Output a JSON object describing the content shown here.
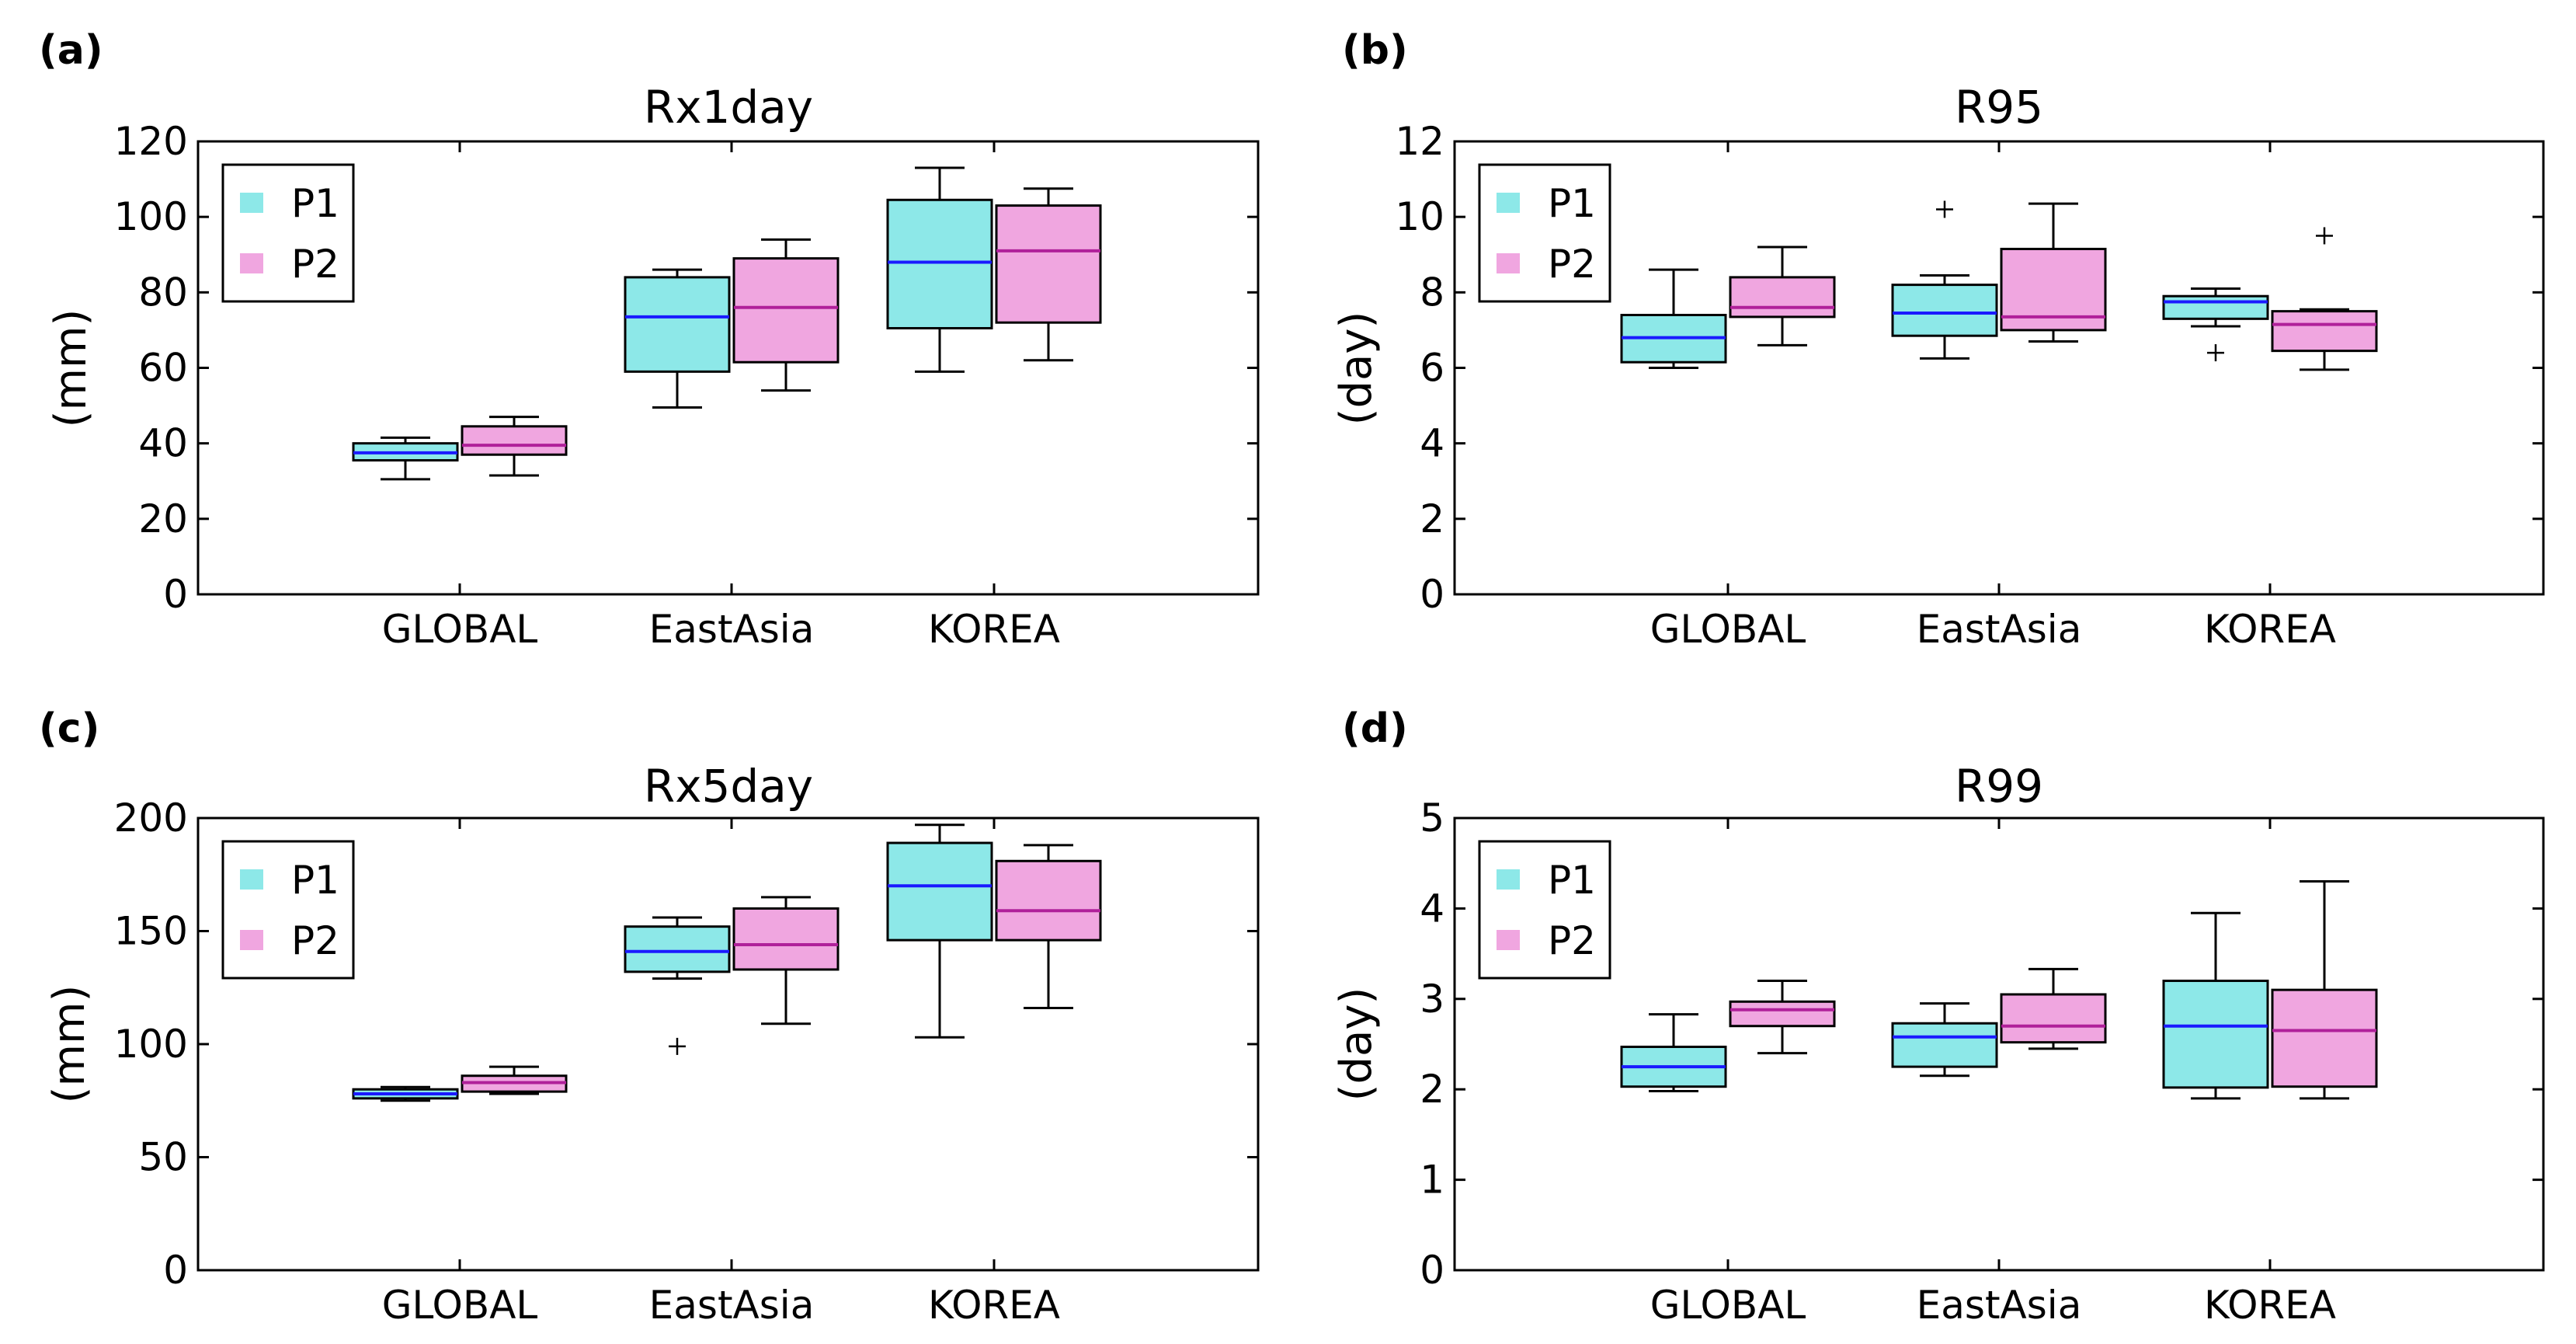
{
  "colors": {
    "p1_fill": "#8de8e8",
    "p2_fill": "#f0a6e0",
    "p1_median": "#1a1aff",
    "p2_median": "#b0209a",
    "frame": "#000000"
  },
  "legend": {
    "p1": "P1",
    "p2": "P2"
  },
  "chart_data": [
    {
      "panel": "(a)",
      "title": "Rx1day",
      "type": "box",
      "ylabel": "(mm)",
      "ylim": [
        0,
        120
      ],
      "yticks": [
        0,
        20,
        40,
        60,
        80,
        100,
        120
      ],
      "ytick_labels": [
        "0",
        "20",
        "40",
        "60",
        "80",
        "100",
        "120"
      ],
      "categories": [
        "GLOBAL",
        "EastAsia",
        "KOREA"
      ],
      "legend_position": "top-left",
      "series": [
        {
          "name": "P1",
          "boxes": [
            {
              "wlo": 30.5,
              "q1": 35.5,
              "med": 37.5,
              "q3": 40,
              "whi": 41.5,
              "fliers": []
            },
            {
              "wlo": 49.5,
              "q1": 59,
              "med": 73.5,
              "q3": 84,
              "whi": 86,
              "fliers": []
            },
            {
              "wlo": 59,
              "q1": 70.5,
              "med": 88,
              "q3": 104.5,
              "whi": 113,
              "fliers": []
            }
          ]
        },
        {
          "name": "P2",
          "boxes": [
            {
              "wlo": 31.5,
              "q1": 37,
              "med": 39.5,
              "q3": 44.5,
              "whi": 47,
              "fliers": []
            },
            {
              "wlo": 54,
              "q1": 61.5,
              "med": 76,
              "q3": 89,
              "whi": 94,
              "fliers": []
            },
            {
              "wlo": 62,
              "q1": 72,
              "med": 91,
              "q3": 103,
              "whi": 107.5,
              "fliers": []
            }
          ]
        }
      ]
    },
    {
      "panel": "(b)",
      "title": "R95",
      "type": "box",
      "ylabel": "(day)",
      "ylim": [
        0,
        12
      ],
      "yticks": [
        0,
        2,
        4,
        6,
        8,
        10,
        12
      ],
      "ytick_labels": [
        "0",
        "2",
        "4",
        "6",
        "8",
        "10",
        "12"
      ],
      "categories": [
        "GLOBAL",
        "EastAsia",
        "KOREA"
      ],
      "legend_position": "top-left",
      "series": [
        {
          "name": "P1",
          "boxes": [
            {
              "wlo": 6.0,
              "q1": 6.15,
              "med": 6.8,
              "q3": 7.4,
              "whi": 8.6,
              "fliers": []
            },
            {
              "wlo": 6.25,
              "q1": 6.85,
              "med": 7.45,
              "q3": 8.2,
              "whi": 8.45,
              "fliers": [
                10.2
              ]
            },
            {
              "wlo": 7.1,
              "q1": 7.3,
              "med": 7.75,
              "q3": 7.9,
              "whi": 8.1,
              "fliers": [
                6.4
              ]
            }
          ]
        },
        {
          "name": "P2",
          "boxes": [
            {
              "wlo": 6.6,
              "q1": 7.35,
              "med": 7.6,
              "q3": 8.4,
              "whi": 9.2,
              "fliers": []
            },
            {
              "wlo": 6.7,
              "q1": 7.0,
              "med": 7.35,
              "q3": 9.15,
              "whi": 10.35,
              "fliers": []
            },
            {
              "wlo": 5.95,
              "q1": 6.45,
              "med": 7.15,
              "q3": 7.5,
              "whi": 7.55,
              "fliers": [
                9.5
              ]
            }
          ]
        }
      ]
    },
    {
      "panel": "(c)",
      "title": "Rx5day",
      "type": "box",
      "ylabel": "(mm)",
      "ylim": [
        0,
        200
      ],
      "yticks": [
        0,
        50,
        100,
        150,
        200
      ],
      "ytick_labels": [
        "0",
        "50",
        "100",
        "150",
        "200"
      ],
      "categories": [
        "GLOBAL",
        "EastAsia",
        "KOREA"
      ],
      "legend_position": "top-left",
      "series": [
        {
          "name": "P1",
          "boxes": [
            {
              "wlo": 75,
              "q1": 76,
              "med": 78,
              "q3": 80,
              "whi": 81,
              "fliers": []
            },
            {
              "wlo": 129,
              "q1": 132,
              "med": 141,
              "q3": 152,
              "whi": 156,
              "fliers": [
                99
              ]
            },
            {
              "wlo": 103,
              "q1": 146,
              "med": 170,
              "q3": 189,
              "whi": 197,
              "fliers": []
            }
          ]
        },
        {
          "name": "P2",
          "boxes": [
            {
              "wlo": 78,
              "q1": 79,
              "med": 83,
              "q3": 86,
              "whi": 90,
              "fliers": []
            },
            {
              "wlo": 109,
              "q1": 133,
              "med": 144,
              "q3": 160,
              "whi": 165,
              "fliers": []
            },
            {
              "wlo": 116,
              "q1": 146,
              "med": 159,
              "q3": 181,
              "whi": 188,
              "fliers": []
            }
          ]
        }
      ]
    },
    {
      "panel": "(d)",
      "title": "R99",
      "type": "box",
      "ylabel": "(day)",
      "ylim": [
        0,
        5
      ],
      "yticks": [
        0,
        1,
        2,
        3,
        4,
        5
      ],
      "ytick_labels": [
        "0",
        "1",
        "2",
        "3",
        "4",
        "5"
      ],
      "categories": [
        "GLOBAL",
        "EastAsia",
        "KOREA"
      ],
      "legend_position": "top-left",
      "series": [
        {
          "name": "P1",
          "boxes": [
            {
              "wlo": 1.98,
              "q1": 2.03,
              "med": 2.25,
              "q3": 2.47,
              "whi": 2.83,
              "fliers": []
            },
            {
              "wlo": 2.15,
              "q1": 2.25,
              "med": 2.58,
              "q3": 2.73,
              "whi": 2.95,
              "fliers": []
            },
            {
              "wlo": 1.9,
              "q1": 2.02,
              "med": 2.7,
              "q3": 3.2,
              "whi": 3.95,
              "fliers": []
            }
          ]
        },
        {
          "name": "P2",
          "boxes": [
            {
              "wlo": 2.4,
              "q1": 2.7,
              "med": 2.88,
              "q3": 2.97,
              "whi": 3.2,
              "fliers": []
            },
            {
              "wlo": 2.45,
              "q1": 2.52,
              "med": 2.7,
              "q3": 3.05,
              "whi": 3.33,
              "fliers": []
            },
            {
              "wlo": 1.9,
              "q1": 2.03,
              "med": 2.65,
              "q3": 3.1,
              "whi": 4.3,
              "fliers": []
            }
          ]
        }
      ]
    }
  ]
}
